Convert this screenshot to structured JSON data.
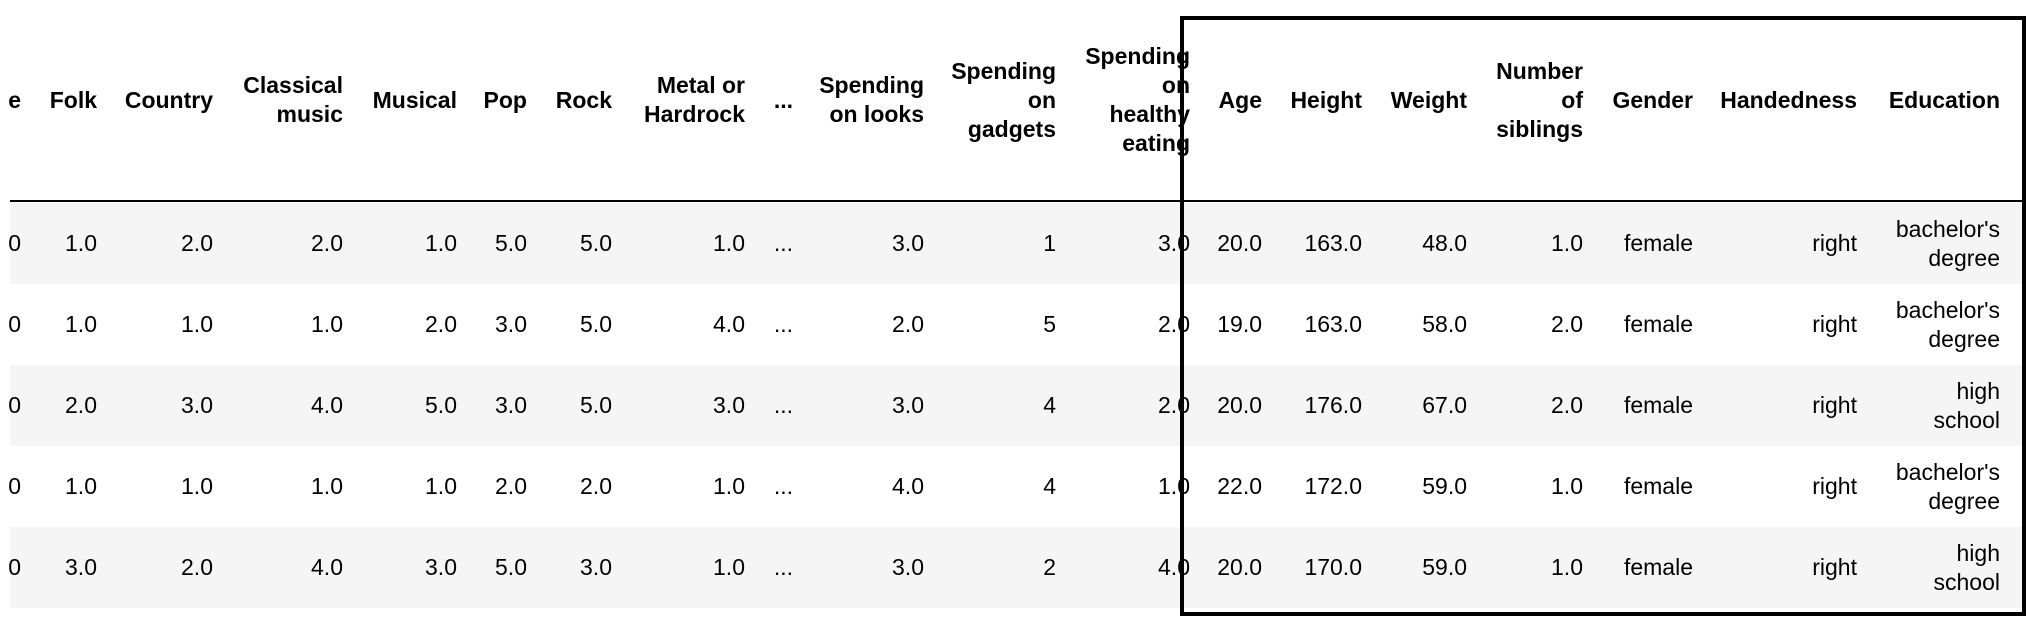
{
  "table": {
    "columns": [
      "e",
      "Folk",
      "Country",
      "Classical\nmusic",
      "Musical",
      "Pop",
      "Rock",
      "Metal or\nHardrock",
      "...",
      "Spending\non looks",
      "Spending\non\ngadgets",
      "Spending\non\nhealthy\neating",
      "Age",
      "Height",
      "Weight",
      "Number\nof\nsiblings",
      "Gender",
      "Handedness",
      "Education"
    ],
    "rows": [
      [
        "0",
        "1.0",
        "2.0",
        "2.0",
        "1.0",
        "5.0",
        "5.0",
        "1.0",
        "...",
        "3.0",
        "1",
        "3.0",
        "20.0",
        "163.0",
        "48.0",
        "1.0",
        "female",
        "right",
        "bachelor's\ndegree"
      ],
      [
        "0",
        "1.0",
        "1.0",
        "1.0",
        "2.0",
        "3.0",
        "5.0",
        "4.0",
        "...",
        "2.0",
        "5",
        "2.0",
        "19.0",
        "163.0",
        "58.0",
        "2.0",
        "female",
        "right",
        "bachelor's\ndegree"
      ],
      [
        "0",
        "2.0",
        "3.0",
        "4.0",
        "5.0",
        "3.0",
        "5.0",
        "3.0",
        "...",
        "3.0",
        "4",
        "2.0",
        "20.0",
        "176.0",
        "67.0",
        "2.0",
        "female",
        "right",
        "high\nschool"
      ],
      [
        "0",
        "1.0",
        "1.0",
        "1.0",
        "1.0",
        "2.0",
        "2.0",
        "1.0",
        "...",
        "4.0",
        "4",
        "1.0",
        "22.0",
        "172.0",
        "59.0",
        "1.0",
        "female",
        "right",
        "bachelor's\ndegree"
      ],
      [
        "0",
        "3.0",
        "2.0",
        "4.0",
        "3.0",
        "5.0",
        "3.0",
        "1.0",
        "...",
        "3.0",
        "2",
        "4.0",
        "20.0",
        "170.0",
        "59.0",
        "1.0",
        "female",
        "right",
        "high\nschool"
      ]
    ]
  },
  "colors": {
    "stripe": "#f5f5f5",
    "highlight_border": "#000000"
  }
}
